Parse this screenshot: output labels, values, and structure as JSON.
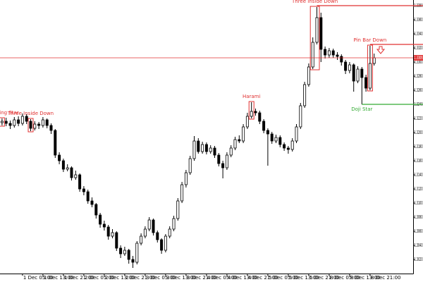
{
  "chart_data": {
    "type": "candlestick",
    "categories": [
      null,
      null,
      null,
      null,
      null,
      "1 Dec 05:00",
      null,
      null,
      null,
      null,
      "1 Dec 13:00",
      null,
      null,
      null,
      null,
      "1 Dec 21:00",
      null,
      null,
      null,
      null,
      "2 Dec 05:00",
      null,
      null,
      null,
      null,
      "2 Dec 13:00",
      null,
      null,
      null,
      null,
      "2 Dec 21:00",
      null,
      null,
      null,
      null,
      "3 Dec 05:00",
      null,
      null,
      null,
      null,
      "3 Dec 13:00",
      null,
      null,
      null,
      null,
      "3 Dec 21:00",
      null,
      null,
      null,
      null,
      "4 Dec 05:00",
      null,
      null,
      null,
      null,
      "4 Dec 13:00",
      null,
      null,
      null,
      null,
      "4 Dec 21:00",
      null,
      null,
      null,
      null,
      "5 Dec 05:00",
      null,
      null,
      null,
      null,
      "5 Dec 13:00",
      null,
      null,
      null,
      null,
      "5 Dec 21:00",
      null,
      null,
      null,
      null,
      "8 Dec 05:00",
      null,
      null,
      null,
      null,
      "8 Dec 13:00",
      null,
      null,
      null,
      null,
      "8 Dec 21:00",
      null
    ],
    "open": [
      1.3214,
      1.3216,
      1.3213,
      1.321,
      1.3218,
      1.3213,
      1.3223,
      1.3216,
      1.3206,
      1.3212,
      1.321,
      1.3218,
      1.321,
      1.3203,
      1.3168,
      1.316,
      1.3148,
      1.315,
      1.3136,
      1.314,
      1.312,
      1.3116,
      1.3103,
      1.3098,
      1.3083,
      1.307,
      1.3066,
      1.3053,
      1.3058,
      1.3036,
      1.3028,
      1.3033,
      1.302,
      1.3016,
      1.3043,
      1.3053,
      1.3063,
      1.3076,
      1.3058,
      1.3048,
      1.3033,
      1.3053,
      1.3063,
      1.3078,
      1.3103,
      1.3126,
      1.3143,
      1.3163,
      1.3188,
      1.3173,
      1.3183,
      1.3173,
      1.3178,
      1.3168,
      1.3156,
      1.315,
      1.3168,
      1.3178,
      1.319,
      1.3188,
      1.3208,
      1.3223,
      1.323,
      1.3228,
      1.3216,
      1.3203,
      1.3198,
      1.3188,
      1.3193,
      1.3183,
      1.3178,
      1.3176,
      1.3188,
      1.3208,
      1.3238,
      1.3268,
      1.3293,
      1.3328,
      1.3363,
      1.3318,
      1.331,
      1.3316,
      1.331,
      1.3308,
      1.33,
      1.3288,
      1.3296,
      1.3273,
      1.329,
      1.3278,
      1.3263,
      1.3298
    ],
    "high": [
      1.322,
      1.3221,
      1.3217,
      1.3222,
      1.3223,
      1.3227,
      1.3226,
      1.3219,
      1.3216,
      1.3215,
      1.3222,
      1.322,
      1.3213,
      1.3205,
      1.3172,
      1.3163,
      1.3155,
      1.3152,
      1.3146,
      1.3142,
      1.3124,
      1.3119,
      1.3108,
      1.31,
      1.3086,
      1.3075,
      1.3069,
      1.3063,
      1.306,
      1.304,
      1.3038,
      1.3035,
      1.3025,
      1.3046,
      1.3057,
      1.3067,
      1.308,
      1.3078,
      1.3061,
      1.305,
      1.3056,
      1.3067,
      1.3082,
      1.3107,
      1.313,
      1.3147,
      1.3167,
      1.3195,
      1.3192,
      1.3187,
      1.3186,
      1.3182,
      1.3181,
      1.3171,
      1.316,
      1.3172,
      1.3182,
      1.3194,
      1.3196,
      1.3212,
      1.3228,
      1.3243,
      1.3234,
      1.3231,
      1.3219,
      1.3206,
      1.3201,
      1.3197,
      1.3196,
      1.3186,
      1.3181,
      1.3192,
      1.3212,
      1.3242,
      1.3272,
      1.3298,
      1.3335,
      1.3378,
      1.337,
      1.3322,
      1.332,
      1.3319,
      1.3314,
      1.3311,
      1.3303,
      1.33,
      1.3298,
      1.3294,
      1.3293,
      1.3282,
      1.3323,
      1.3312
    ],
    "low": [
      1.321,
      1.3209,
      1.3205,
      1.3207,
      1.3209,
      1.321,
      1.3212,
      1.3202,
      1.3203,
      1.3205,
      1.3207,
      1.3206,
      1.3198,
      1.3164,
      1.3155,
      1.3144,
      1.3145,
      1.3132,
      1.3133,
      1.3116,
      1.3111,
      1.3099,
      1.3094,
      1.3078,
      1.3065,
      1.3061,
      1.3048,
      1.305,
      1.3032,
      1.3022,
      1.3025,
      1.3014,
      1.3008,
      1.3013,
      1.304,
      1.305,
      1.306,
      1.3054,
      1.3044,
      1.3028,
      1.303,
      1.305,
      1.306,
      1.3075,
      1.31,
      1.3122,
      1.314,
      1.316,
      1.317,
      1.317,
      1.3169,
      1.317,
      1.3164,
      1.3152,
      1.3135,
      1.3147,
      1.3165,
      1.3175,
      1.3185,
      1.3185,
      1.3205,
      1.322,
      1.3224,
      1.3212,
      1.3199,
      1.3153,
      1.3184,
      1.3185,
      1.3179,
      1.3174,
      1.317,
      1.3173,
      1.3185,
      1.3205,
      1.3235,
      1.3265,
      1.329,
      1.3325,
      1.33,
      1.3305,
      1.3306,
      1.3306,
      1.3303,
      1.3295,
      1.3283,
      1.3284,
      1.3258,
      1.327,
      1.324,
      1.3258,
      1.326,
      1.3295
    ],
    "close": [
      1.3216,
      1.3213,
      1.321,
      1.3218,
      1.3213,
      1.3223,
      1.3216,
      1.3206,
      1.3212,
      1.321,
      1.3218,
      1.321,
      1.3203,
      1.3168,
      1.316,
      1.3148,
      1.315,
      1.3136,
      1.314,
      1.312,
      1.3116,
      1.3103,
      1.3098,
      1.3083,
      1.307,
      1.3066,
      1.3053,
      1.3058,
      1.3036,
      1.3028,
      1.3033,
      1.302,
      1.3016,
      1.3043,
      1.3053,
      1.3063,
      1.3076,
      1.3058,
      1.3048,
      1.3033,
      1.3053,
      1.3063,
      1.3078,
      1.3103,
      1.3126,
      1.3143,
      1.3163,
      1.3188,
      1.3173,
      1.3183,
      1.3173,
      1.3178,
      1.3168,
      1.3156,
      1.315,
      1.3168,
      1.3178,
      1.319,
      1.3188,
      1.3208,
      1.3223,
      1.323,
      1.3228,
      1.3216,
      1.3203,
      1.3198,
      1.3188,
      1.3193,
      1.3183,
      1.3178,
      1.3176,
      1.3188,
      1.3208,
      1.3238,
      1.3268,
      1.3293,
      1.3328,
      1.3363,
      1.3318,
      1.331,
      1.3316,
      1.331,
      1.3308,
      1.33,
      1.3288,
      1.3296,
      1.3273,
      1.329,
      1.3278,
      1.3263,
      1.3298,
      1.3306
    ],
    "up_color": "#ffffff",
    "down_color": "#000000",
    "ylim": [
      1.3,
      1.3388
    ],
    "yticks": [
      {
        "value": 1.302,
        "label": "1.3020"
      },
      {
        "value": 1.304,
        "label": "1.3040"
      },
      {
        "value": 1.306,
        "label": "1.3060"
      },
      {
        "value": 1.308,
        "label": "1.3080"
      },
      {
        "value": 1.31,
        "label": "1.3100"
      },
      {
        "value": 1.312,
        "label": "1.3120"
      },
      {
        "value": 1.314,
        "label": "1.3140"
      },
      {
        "value": 1.316,
        "label": "1.3160"
      },
      {
        "value": 1.318,
        "label": "1.3180"
      },
      {
        "value": 1.32,
        "label": "1.3200"
      },
      {
        "value": 1.322,
        "label": "1.3220"
      },
      {
        "value": 1.324,
        "label": "1.3240"
      },
      {
        "value": 1.326,
        "label": "1.3260"
      },
      {
        "value": 1.328,
        "label": "1.3280"
      },
      {
        "value": 1.33,
        "label": "1.3300"
      },
      {
        "value": 1.332,
        "label": "1.3320"
      },
      {
        "value": 1.334,
        "label": "1.3340"
      },
      {
        "value": 1.336,
        "label": "1.3360"
      },
      {
        "value": 1.338,
        "label": "1.3380"
      }
    ],
    "grid": false,
    "levels": [
      {
        "value": 1.3306,
        "label": "1.3306",
        "color": "#e03030",
        "from": 0
      },
      {
        "value": 1.338,
        "color": "#e03030",
        "from": 77
      },
      {
        "value": 1.3325,
        "color": "#e03030",
        "from": 90
      },
      {
        "value": 1.324,
        "color": "#33aa33",
        "from": 88
      }
    ],
    "annotations": [
      {
        "text": "Shooting Star",
        "color": "#e03030",
        "candles": [
          0,
          0
        ],
        "placement": "above"
      },
      {
        "text": "Three Inside Down",
        "color": "#e03030",
        "candles": [
          7,
          7
        ],
        "placement": "above"
      },
      {
        "text": "Harami",
        "color": "#e03030",
        "candles": [
          61,
          61
        ],
        "placement": "above"
      },
      {
        "text": "Three Inside Down",
        "color": "#e03030",
        "candles": [
          76,
          77
        ],
        "placement": "above"
      },
      {
        "text": "Pin Bar Down",
        "color": "#e03030",
        "candles": [
          90,
          90
        ],
        "placement": "above"
      },
      {
        "text": "Doji Star",
        "color": "#33aa33",
        "candles": [
          88,
          88
        ],
        "placement": "below"
      }
    ]
  }
}
